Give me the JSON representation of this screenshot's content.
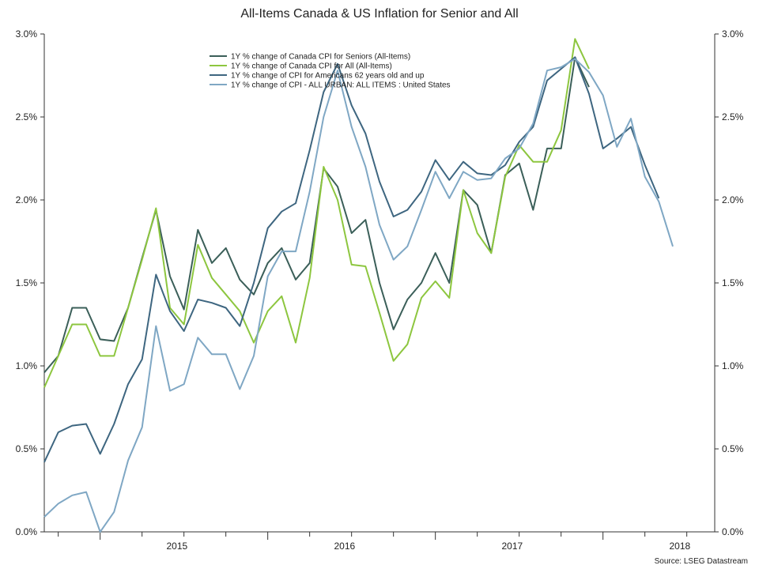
{
  "chart_data": {
    "type": "line",
    "title": "All-Items Canada & US Inflation for Senior and All",
    "source": "Source: LSEG Datastream",
    "ylim": [
      0,
      3.0
    ],
    "y_ticks": [
      0,
      0.5,
      1.0,
      1.5,
      2.0,
      2.5,
      3.0
    ],
    "y_tick_labels": [
      "0.0%",
      "0.5%",
      "1.0%",
      "1.5%",
      "2.0%",
      "2.5%",
      "3.0%"
    ],
    "x_range": [
      "2014-09",
      "2018-09"
    ],
    "x_year_labels": [
      "2015",
      "2016",
      "2017",
      "2018"
    ],
    "grid": false,
    "legend_position": "top-center",
    "x": [
      "2014-09",
      "2014-10",
      "2014-11",
      "2014-12",
      "2015-01",
      "2015-02",
      "2015-03",
      "2015-04",
      "2015-05",
      "2015-06",
      "2015-07",
      "2015-08",
      "2015-09",
      "2015-10",
      "2015-11",
      "2015-12",
      "2016-01",
      "2016-02",
      "2016-03",
      "2016-04",
      "2016-05",
      "2016-06",
      "2016-07",
      "2016-08",
      "2016-09",
      "2016-10",
      "2016-11",
      "2016-12",
      "2017-01",
      "2017-02",
      "2017-03",
      "2017-04",
      "2017-05",
      "2017-06",
      "2017-07",
      "2017-08",
      "2017-09",
      "2017-10",
      "2017-11",
      "2017-12",
      "2018-01",
      "2018-02",
      "2018-03",
      "2018-04",
      "2018-05",
      "2018-06",
      "2018-07",
      "2018-08",
      "2018-09"
    ],
    "series": [
      {
        "name": "1Y % change of Canada CPI for Seniors (All-Items)",
        "color": "#3b5f59",
        "values": [
          0.96,
          1.06,
          1.35,
          1.35,
          1.16,
          1.15,
          1.35,
          1.65,
          1.94,
          1.54,
          1.34,
          1.82,
          1.62,
          1.71,
          1.52,
          1.43,
          1.62,
          1.71,
          1.52,
          1.62,
          2.19,
          2.08,
          1.8,
          1.88,
          1.5,
          1.22,
          1.4,
          1.5,
          1.68,
          1.5,
          2.06,
          1.97,
          1.68,
          2.15,
          2.22,
          1.94,
          2.31,
          2.31,
          2.86,
          2.68,
          null,
          null,
          null,
          null,
          null,
          null,
          null,
          null,
          null
        ]
      },
      {
        "name": "1Y % change of Canada CPI for All (All-Items)",
        "color": "#8dc63f",
        "values": [
          0.87,
          1.06,
          1.25,
          1.25,
          1.06,
          1.06,
          1.35,
          1.64,
          1.95,
          1.35,
          1.25,
          1.73,
          1.53,
          1.43,
          1.33,
          1.14,
          1.33,
          1.42,
          1.14,
          1.53,
          2.2,
          2.0,
          1.61,
          1.6,
          1.32,
          1.03,
          1.13,
          1.41,
          1.51,
          1.41,
          2.06,
          1.8,
          1.68,
          2.14,
          2.33,
          2.23,
          2.23,
          2.42,
          2.97,
          2.79,
          null,
          null,
          null,
          null,
          null,
          null,
          null,
          null,
          null
        ]
      },
      {
        "name": "1Y % change of CPI for Americans 62 years old and up",
        "color": "#3e6680",
        "values": [
          0.42,
          0.6,
          0.64,
          0.65,
          0.47,
          0.65,
          0.89,
          1.04,
          1.55,
          1.33,
          1.21,
          1.4,
          1.38,
          1.35,
          1.24,
          1.5,
          1.83,
          1.93,
          1.98,
          2.3,
          2.65,
          2.82,
          2.57,
          2.4,
          2.11,
          1.9,
          1.94,
          2.05,
          2.24,
          2.12,
          2.23,
          2.16,
          2.15,
          2.21,
          2.35,
          2.44,
          2.72,
          2.79,
          2.86,
          2.64,
          2.31,
          2.37,
          2.44,
          2.21,
          2.01,
          null,
          null,
          null,
          null
        ]
      },
      {
        "name": "1Y % change of CPI - ALL URBAN: ALL ITEMS : United States",
        "color": "#7fa7c4",
        "values": [
          0.09,
          0.17,
          0.22,
          0.24,
          0.0,
          0.12,
          0.43,
          0.63,
          1.24,
          0.85,
          0.89,
          1.17,
          1.07,
          1.07,
          0.86,
          1.06,
          1.54,
          1.69,
          1.69,
          2.05,
          2.5,
          2.78,
          2.44,
          2.2,
          1.85,
          1.64,
          1.72,
          1.94,
          2.17,
          2.01,
          2.17,
          2.12,
          2.13,
          2.25,
          2.31,
          2.46,
          2.78,
          2.8,
          2.85,
          2.77,
          2.63,
          2.32,
          2.49,
          2.14,
          1.99,
          1.72,
          null,
          null,
          null
        ]
      }
    ]
  }
}
